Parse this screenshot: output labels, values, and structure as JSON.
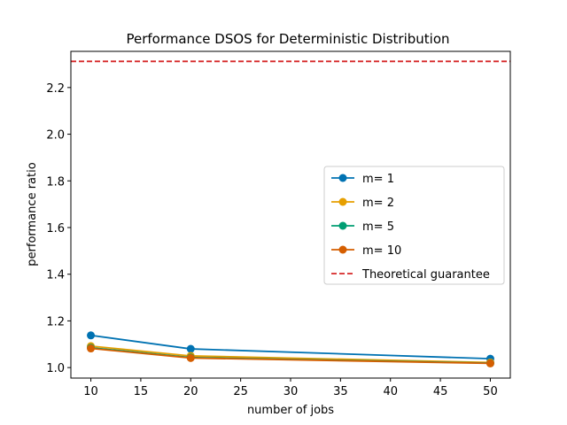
{
  "chart_data": {
    "type": "line",
    "title": "Performance DSOS for Deterministic Distribution",
    "xlabel": "number of jobs",
    "ylabel": "performance ratio",
    "x": [
      10,
      20,
      50
    ],
    "xlim": [
      8,
      52
    ],
    "ylim": [
      0.955,
      2.355
    ],
    "xticks": [
      10,
      15,
      20,
      25,
      30,
      35,
      40,
      45,
      50
    ],
    "yticks": [
      1.0,
      1.2,
      1.4,
      1.6,
      1.8,
      2.0,
      2.2
    ],
    "ytick_labels": [
      "1.0",
      "1.2",
      "1.4",
      "1.6",
      "1.8",
      "2.0",
      "2.2"
    ],
    "grid": false,
    "legend_position": "center-right",
    "series": [
      {
        "name": "m= 1",
        "values": [
          1.138,
          1.08,
          1.038
        ],
        "color": "#0072B2"
      },
      {
        "name": "m= 2",
        "values": [
          1.092,
          1.05,
          1.022
        ],
        "color": "#E69F00"
      },
      {
        "name": "m= 5",
        "values": [
          1.085,
          1.043,
          1.019
        ],
        "color": "#009E73"
      },
      {
        "name": "m= 10",
        "values": [
          1.082,
          1.041,
          1.018
        ],
        "color": "#D55E00"
      }
    ],
    "reference_line": {
      "name": "Theoretical guarantee",
      "y": 2.312,
      "color": "#D62728",
      "style": "dashed"
    }
  }
}
